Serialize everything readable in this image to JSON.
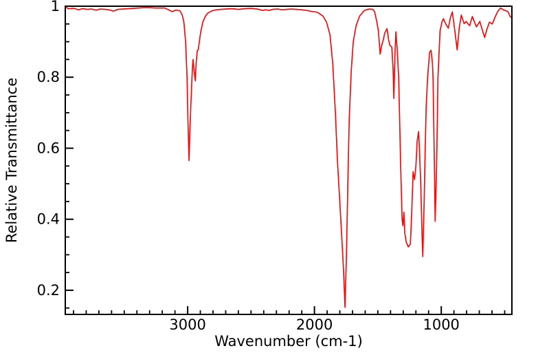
{
  "chart_data": {
    "type": "line",
    "xlabel": "Wavenumber (cm-1)",
    "ylabel": "Relative Transmittance",
    "x_axis": {
      "min": 443,
      "max": 3965,
      "reversed": true,
      "major_ticks": [
        3000,
        2000,
        1000
      ],
      "tick_labels": [
        "3000",
        "2000",
        "1000"
      ],
      "minor_tick_step": 100
    },
    "y_axis": {
      "min": 0.132,
      "max": 1.0,
      "major_ticks": [
        1,
        0.8,
        0.6,
        0.4,
        0.2
      ],
      "tick_labels": [
        "1",
        "0.8",
        "0.6",
        "0.4",
        "0.2"
      ],
      "minor_tick_step": 0.05
    },
    "grid": false,
    "legend": "none",
    "line_color": "#f40b0b",
    "axis_color": "#000000",
    "background_color": "#ffffff",
    "series": [
      {
        "name": "ir-spectrum",
        "points": [
          [
            3965,
            0.998
          ],
          [
            3940,
            0.993
          ],
          [
            3900,
            0.994
          ],
          [
            3860,
            0.99
          ],
          [
            3830,
            0.993
          ],
          [
            3790,
            0.991
          ],
          [
            3760,
            0.992
          ],
          [
            3720,
            0.989
          ],
          [
            3690,
            0.992
          ],
          [
            3650,
            0.991
          ],
          [
            3620,
            0.99
          ],
          [
            3586,
            0.986
          ],
          [
            3550,
            0.991
          ],
          [
            3510,
            0.992
          ],
          [
            3470,
            0.993
          ],
          [
            3430,
            0.994
          ],
          [
            3390,
            0.995
          ],
          [
            3350,
            0.996
          ],
          [
            3300,
            0.996
          ],
          [
            3250,
            0.995
          ],
          [
            3180,
            0.995
          ],
          [
            3124,
            0.985
          ],
          [
            3090,
            0.989
          ],
          [
            3060,
            0.987
          ],
          [
            3043,
            0.975
          ],
          [
            3030,
            0.955
          ],
          [
            3016,
            0.9
          ],
          [
            3005,
            0.8
          ],
          [
            2998,
            0.68
          ],
          [
            2992,
            0.6
          ],
          [
            2989,
            0.565
          ],
          [
            2983,
            0.64
          ],
          [
            2975,
            0.72
          ],
          [
            2962,
            0.83
          ],
          [
            2957,
            0.85
          ],
          [
            2950,
            0.82
          ],
          [
            2940,
            0.79
          ],
          [
            2933,
            0.84
          ],
          [
            2924,
            0.875
          ],
          [
            2916,
            0.878
          ],
          [
            2908,
            0.9
          ],
          [
            2898,
            0.925
          ],
          [
            2881,
            0.955
          ],
          [
            2860,
            0.972
          ],
          [
            2843,
            0.98
          ],
          [
            2820,
            0.985
          ],
          [
            2799,
            0.988
          ],
          [
            2770,
            0.99
          ],
          [
            2740,
            0.991
          ],
          [
            2700,
            0.992
          ],
          [
            2650,
            0.993
          ],
          [
            2600,
            0.991
          ],
          [
            2550,
            0.993
          ],
          [
            2500,
            0.994
          ],
          [
            2450,
            0.992
          ],
          [
            2409,
            0.988
          ],
          [
            2390,
            0.99
          ],
          [
            2355,
            0.988
          ],
          [
            2330,
            0.991
          ],
          [
            2290,
            0.992
          ],
          [
            2257,
            0.99
          ],
          [
            2220,
            0.991
          ],
          [
            2180,
            0.992
          ],
          [
            2140,
            0.991
          ],
          [
            2100,
            0.99
          ],
          [
            2060,
            0.988
          ],
          [
            2020,
            0.985
          ],
          [
            1976,
            0.983
          ],
          [
            1932,
            0.972
          ],
          [
            1905,
            0.955
          ],
          [
            1878,
            0.92
          ],
          [
            1856,
            0.84
          ],
          [
            1835,
            0.7
          ],
          [
            1818,
            0.56
          ],
          [
            1802,
            0.46
          ],
          [
            1786,
            0.36
          ],
          [
            1770,
            0.25
          ],
          [
            1759,
            0.152
          ],
          [
            1748,
            0.3
          ],
          [
            1737,
            0.5
          ],
          [
            1726,
            0.68
          ],
          [
            1710,
            0.82
          ],
          [
            1694,
            0.9
          ],
          [
            1672,
            0.945
          ],
          [
            1645,
            0.972
          ],
          [
            1607,
            0.988
          ],
          [
            1580,
            0.991
          ],
          [
            1564,
            0.992
          ],
          [
            1540,
            0.991
          ],
          [
            1526,
            0.985
          ],
          [
            1509,
            0.957
          ],
          [
            1496,
            0.93
          ],
          [
            1482,
            0.865
          ],
          [
            1470,
            0.89
          ],
          [
            1461,
            0.9
          ],
          [
            1445,
            0.925
          ],
          [
            1428,
            0.937
          ],
          [
            1415,
            0.905
          ],
          [
            1406,
            0.89
          ],
          [
            1390,
            0.885
          ],
          [
            1380,
            0.82
          ],
          [
            1374,
            0.74
          ],
          [
            1366,
            0.86
          ],
          [
            1358,
            0.928
          ],
          [
            1348,
            0.88
          ],
          [
            1336,
            0.8
          ],
          [
            1320,
            0.55
          ],
          [
            1309,
            0.4
          ],
          [
            1303,
            0.382
          ],
          [
            1295,
            0.42
          ],
          [
            1287,
            0.36
          ],
          [
            1276,
            0.335
          ],
          [
            1260,
            0.322
          ],
          [
            1244,
            0.33
          ],
          [
            1233,
            0.42
          ],
          [
            1222,
            0.534
          ],
          [
            1211,
            0.512
          ],
          [
            1200,
            0.55
          ],
          [
            1190,
            0.62
          ],
          [
            1179,
            0.647
          ],
          [
            1170,
            0.58
          ],
          [
            1162,
            0.5
          ],
          [
            1151,
            0.35
          ],
          [
            1146,
            0.295
          ],
          [
            1135,
            0.45
          ],
          [
            1127,
            0.6
          ],
          [
            1119,
            0.715
          ],
          [
            1108,
            0.8
          ],
          [
            1092,
            0.87
          ],
          [
            1081,
            0.876
          ],
          [
            1070,
            0.84
          ],
          [
            1065,
            0.8
          ],
          [
            1054,
            0.55
          ],
          [
            1048,
            0.394
          ],
          [
            1037,
            0.55
          ],
          [
            1026,
            0.8
          ],
          [
            1010,
            0.93
          ],
          [
            995,
            0.955
          ],
          [
            983,
            0.965
          ],
          [
            965,
            0.95
          ],
          [
            945,
            0.938
          ],
          [
            928,
            0.968
          ],
          [
            913,
            0.984
          ],
          [
            893,
            0.93
          ],
          [
            875,
            0.877
          ],
          [
            858,
            0.94
          ],
          [
            842,
            0.975
          ],
          [
            820,
            0.951
          ],
          [
            804,
            0.957
          ],
          [
            777,
            0.945
          ],
          [
            755,
            0.971
          ],
          [
            723,
            0.942
          ],
          [
            696,
            0.957
          ],
          [
            678,
            0.935
          ],
          [
            658,
            0.912
          ],
          [
            640,
            0.935
          ],
          [
            620,
            0.955
          ],
          [
            598,
            0.95
          ],
          [
            575,
            0.97
          ],
          [
            555,
            0.985
          ],
          [
            533,
            0.995
          ],
          [
            510,
            0.99
          ],
          [
            475,
            0.985
          ],
          [
            457,
            0.971
          ],
          [
            443,
            0.968
          ]
        ]
      }
    ]
  }
}
